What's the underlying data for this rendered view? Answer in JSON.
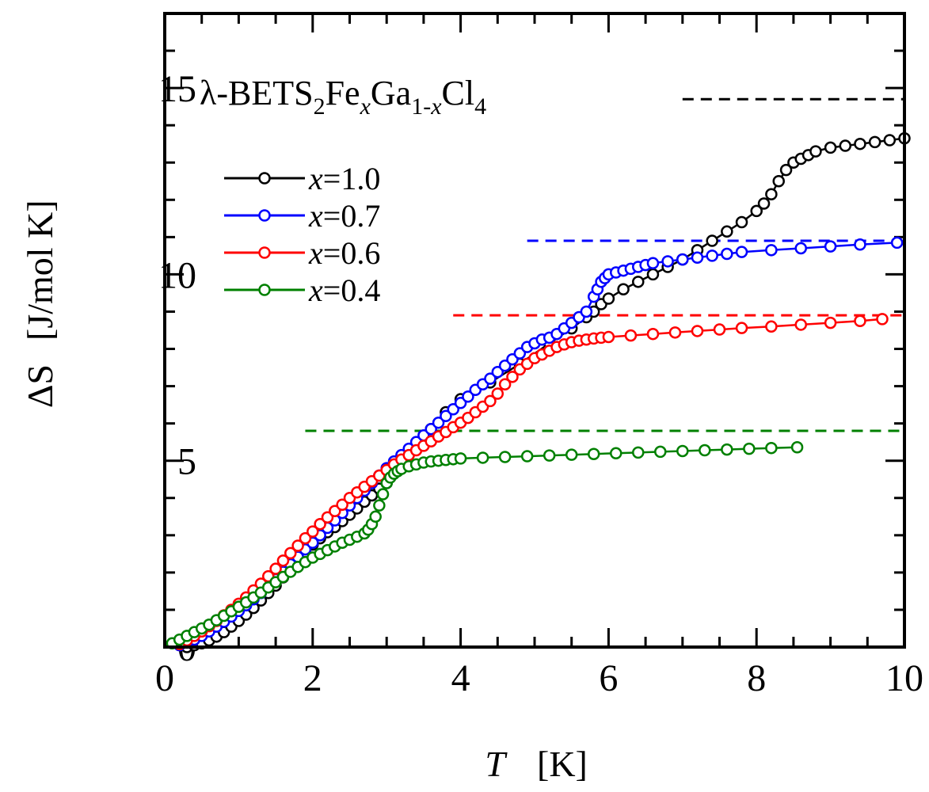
{
  "chart_data": {
    "type": "line",
    "title_parts": [
      "λ-BETS",
      "2",
      "Fe",
      "x",
      "Ga",
      "1-",
      "x",
      "Cl",
      "4"
    ],
    "xlabel": "T",
    "xlabel_unit": "[K]",
    "ylabel": "ΔS",
    "ylabel_unit": "[J/mol K]",
    "xlim": [
      0,
      10
    ],
    "ylim": [
      0,
      17
    ],
    "xticks": [
      0,
      2,
      4,
      6,
      8,
      10
    ],
    "xtick_labels": [
      "0",
      "2",
      "4",
      "6",
      "8",
      "10"
    ],
    "yticks": [
      0,
      5,
      10,
      15
    ],
    "ytick_labels": [
      "0",
      "5",
      "10",
      "15"
    ],
    "grid": false,
    "legend_position": "upper-left",
    "series": [
      {
        "name": "x=1.0",
        "var": "x",
        "value_label": "=1.0",
        "color": "#000000",
        "marker": "open-circle",
        "x": [
          0.3,
          0.4,
          0.5,
          0.6,
          0.7,
          0.8,
          0.9,
          1.0,
          1.1,
          1.2,
          1.3,
          1.4,
          1.5,
          1.6,
          1.7,
          1.8,
          1.9,
          2.0,
          2.1,
          2.2,
          2.3,
          2.4,
          2.5,
          2.6,
          2.7,
          2.8,
          2.9,
          3.0,
          3.2,
          3.4,
          3.6,
          3.8,
          4.0,
          4.4,
          4.8,
          5.2,
          5.5,
          5.7,
          5.8,
          5.9,
          6.0,
          6.2,
          6.4,
          6.6,
          6.8,
          7.0,
          7.2,
          7.4,
          7.6,
          7.8,
          8.0,
          8.1,
          8.2,
          8.3,
          8.4,
          8.5,
          8.6,
          8.7,
          8.8,
          9.0,
          9.2,
          9.4,
          9.6,
          9.8,
          10.0
        ],
        "y": [
          0.0,
          0.05,
          0.1,
          0.18,
          0.28,
          0.4,
          0.55,
          0.7,
          0.87,
          1.05,
          1.25,
          1.45,
          1.65,
          1.87,
          2.1,
          2.32,
          2.55,
          2.75,
          2.92,
          3.08,
          3.22,
          3.38,
          3.55,
          3.72,
          3.9,
          4.07,
          4.25,
          4.4,
          4.9,
          5.35,
          5.85,
          6.3,
          6.65,
          7.1,
          7.6,
          8.15,
          8.55,
          8.85,
          9.0,
          9.2,
          9.35,
          9.6,
          9.8,
          10.0,
          10.2,
          10.4,
          10.65,
          10.9,
          11.15,
          11.4,
          11.7,
          11.9,
          12.15,
          12.5,
          12.8,
          13.0,
          13.1,
          13.2,
          13.3,
          13.4,
          13.45,
          13.5,
          13.55,
          13.6,
          13.65
        ]
      },
      {
        "name": "x=0.7",
        "var": "x",
        "value_label": "=0.7",
        "color": "#0000ff",
        "marker": "open-circle",
        "x": [
          0.2,
          0.3,
          0.4,
          0.5,
          0.6,
          0.7,
          0.8,
          0.9,
          1.0,
          1.1,
          1.2,
          1.3,
          1.4,
          1.5,
          1.6,
          1.7,
          1.8,
          1.9,
          2.0,
          2.1,
          2.2,
          2.3,
          2.4,
          2.5,
          2.6,
          2.7,
          2.8,
          2.9,
          3.0,
          3.1,
          3.2,
          3.3,
          3.4,
          3.5,
          3.6,
          3.7,
          3.8,
          3.9,
          4.0,
          4.1,
          4.2,
          4.3,
          4.4,
          4.5,
          4.6,
          4.7,
          4.8,
          4.9,
          5.0,
          5.1,
          5.2,
          5.3,
          5.4,
          5.5,
          5.6,
          5.7,
          5.8,
          5.85,
          5.9,
          5.95,
          6.0,
          6.1,
          6.2,
          6.3,
          6.4,
          6.5,
          6.6,
          6.8,
          7.0,
          7.2,
          7.4,
          7.6,
          7.8,
          8.2,
          8.6,
          9.0,
          9.4,
          9.9
        ],
        "y": [
          0.05,
          0.12,
          0.2,
          0.3,
          0.42,
          0.55,
          0.68,
          0.82,
          0.97,
          1.12,
          1.28,
          1.45,
          1.62,
          1.82,
          2.02,
          2.22,
          2.42,
          2.62,
          2.8,
          3.0,
          3.2,
          3.4,
          3.6,
          3.8,
          4.0,
          4.2,
          4.4,
          4.6,
          4.8,
          4.98,
          5.15,
          5.32,
          5.5,
          5.68,
          5.85,
          6.02,
          6.2,
          6.38,
          6.55,
          6.72,
          6.9,
          7.05,
          7.2,
          7.38,
          7.55,
          7.72,
          7.88,
          8.05,
          8.15,
          8.25,
          8.3,
          8.4,
          8.55,
          8.7,
          8.85,
          9.0,
          9.4,
          9.6,
          9.8,
          9.9,
          10.0,
          10.05,
          10.1,
          10.15,
          10.2,
          10.25,
          10.3,
          10.35,
          10.4,
          10.45,
          10.5,
          10.55,
          10.6,
          10.65,
          10.7,
          10.75,
          10.8,
          10.85
        ]
      },
      {
        "name": "x=0.6",
        "var": "x",
        "value_label": "=0.6",
        "color": "#ff0000",
        "marker": "open-circle",
        "x": [
          0.2,
          0.3,
          0.4,
          0.5,
          0.6,
          0.7,
          0.8,
          0.9,
          1.0,
          1.1,
          1.2,
          1.3,
          1.4,
          1.5,
          1.6,
          1.7,
          1.8,
          1.9,
          2.0,
          2.1,
          2.2,
          2.3,
          2.4,
          2.5,
          2.6,
          2.7,
          2.8,
          2.9,
          3.0,
          3.1,
          3.2,
          3.3,
          3.4,
          3.5,
          3.6,
          3.7,
          3.8,
          3.9,
          4.0,
          4.1,
          4.2,
          4.3,
          4.4,
          4.5,
          4.6,
          4.7,
          4.8,
          4.9,
          5.0,
          5.1,
          5.2,
          5.3,
          5.4,
          5.5,
          5.6,
          5.7,
          5.8,
          5.9,
          6.0,
          6.3,
          6.6,
          6.9,
          7.2,
          7.5,
          7.8,
          8.2,
          8.6,
          9.0,
          9.4,
          9.7
        ],
        "y": [
          0.08,
          0.18,
          0.3,
          0.42,
          0.56,
          0.7,
          0.85,
          1.0,
          1.16,
          1.33,
          1.52,
          1.7,
          1.9,
          2.1,
          2.32,
          2.52,
          2.72,
          2.92,
          3.1,
          3.3,
          3.48,
          3.65,
          3.82,
          4.0,
          4.15,
          4.3,
          4.45,
          4.6,
          4.75,
          4.9,
          5.03,
          5.15,
          5.28,
          5.4,
          5.52,
          5.65,
          5.77,
          5.9,
          6.02,
          6.15,
          6.3,
          6.45,
          6.6,
          6.8,
          7.05,
          7.25,
          7.45,
          7.6,
          7.75,
          7.85,
          7.95,
          8.05,
          8.12,
          8.18,
          8.22,
          8.25,
          8.28,
          8.3,
          8.32,
          8.36,
          8.4,
          8.44,
          8.48,
          8.52,
          8.56,
          8.6,
          8.65,
          8.7,
          8.75,
          8.8
        ]
      },
      {
        "name": "x=0.4",
        "var": "x",
        "value_label": "=0.4",
        "color": "#008000",
        "marker": "open-circle",
        "x": [
          0.1,
          0.2,
          0.3,
          0.4,
          0.5,
          0.6,
          0.7,
          0.8,
          0.9,
          1.0,
          1.1,
          1.2,
          1.3,
          1.4,
          1.5,
          1.6,
          1.7,
          1.8,
          1.9,
          2.0,
          2.1,
          2.2,
          2.3,
          2.4,
          2.5,
          2.6,
          2.7,
          2.75,
          2.8,
          2.85,
          2.9,
          2.95,
          3.0,
          3.05,
          3.1,
          3.15,
          3.2,
          3.3,
          3.4,
          3.5,
          3.6,
          3.7,
          3.8,
          3.9,
          4.0,
          4.3,
          4.6,
          4.9,
          5.2,
          5.5,
          5.8,
          6.1,
          6.4,
          6.7,
          7.0,
          7.3,
          7.6,
          7.9,
          8.2,
          8.55
        ],
        "y": [
          0.1,
          0.2,
          0.3,
          0.4,
          0.5,
          0.6,
          0.72,
          0.84,
          0.96,
          1.08,
          1.2,
          1.33,
          1.46,
          1.6,
          1.74,
          1.88,
          2.02,
          2.15,
          2.28,
          2.4,
          2.5,
          2.6,
          2.7,
          2.8,
          2.88,
          2.96,
          3.05,
          3.15,
          3.3,
          3.5,
          3.8,
          4.1,
          4.4,
          4.55,
          4.65,
          4.72,
          4.78,
          4.85,
          4.9,
          4.95,
          4.98,
          5.0,
          5.02,
          5.04,
          5.06,
          5.08,
          5.1,
          5.12,
          5.14,
          5.16,
          5.18,
          5.2,
          5.22,
          5.24,
          5.26,
          5.28,
          5.3,
          5.32,
          5.34,
          5.36
        ]
      }
    ],
    "reference_lines": [
      {
        "series": "x=1.0",
        "color": "#000000",
        "y": 14.7,
        "x_start": 7.0,
        "x_end": 10.0
      },
      {
        "series": "x=0.7",
        "color": "#0000ff",
        "y": 10.9,
        "x_start": 4.9,
        "x_end": 10.0
      },
      {
        "series": "x=0.6",
        "color": "#ff0000",
        "y": 8.9,
        "x_start": 3.9,
        "x_end": 10.0
      },
      {
        "series": "x=0.4",
        "color": "#008000",
        "y": 5.8,
        "x_start": 1.9,
        "x_end": 10.0
      }
    ]
  }
}
